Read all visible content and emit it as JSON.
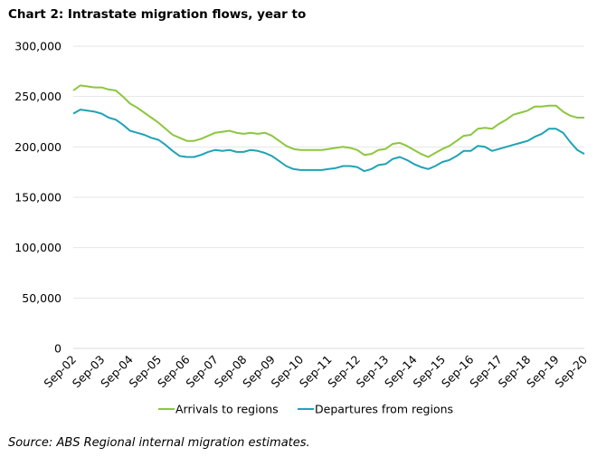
{
  "chart_data": {
    "type": "line",
    "title": "Chart 2: Intrastate migration flows, year to",
    "source": "Source: ABS Regional internal migration estimates.",
    "xlabel": "",
    "ylabel": "",
    "ylim": [
      0,
      300000
    ],
    "yticks": [
      0,
      50000,
      100000,
      150000,
      200000,
      250000,
      300000
    ],
    "ytick_labels": [
      "0",
      "50,000",
      "100,000",
      "150,000",
      "200,000",
      "250,000",
      "300,000"
    ],
    "xtick_labels": [
      "Sep-02",
      "Sep-03",
      "Sep-04",
      "Sep-05",
      "Sep-06",
      "Sep-07",
      "Sep-08",
      "Sep-09",
      "Sep-10",
      "Sep-11",
      "Sep-12",
      "Sep-13",
      "Sep-14",
      "Sep-15",
      "Sep-16",
      "Sep-17",
      "Sep-18",
      "Sep-19",
      "Sep-20"
    ],
    "x_frequency": "quarterly, Sep-02 to Sep-20",
    "grid": "horizontal",
    "legend": "bottom",
    "series": [
      {
        "name": "Arrivals to regions",
        "color": "#8dc63f",
        "values": [
          256000,
          261000,
          260000,
          259000,
          259000,
          257000,
          256000,
          250000,
          243000,
          239000,
          234000,
          229000,
          224000,
          218000,
          212000,
          209000,
          206000,
          206000,
          208000,
          211000,
          214000,
          215000,
          216000,
          214000,
          213000,
          214000,
          213000,
          214000,
          211000,
          206000,
          201000,
          198000,
          197000,
          197000,
          197000,
          197000,
          198000,
          199000,
          200000,
          199000,
          197000,
          192000,
          193000,
          197000,
          198000,
          203000,
          204000,
          201000,
          197000,
          193000,
          190000,
          194000,
          198000,
          201000,
          206000,
          211000,
          212000,
          218000,
          219000,
          218000,
          223000,
          227000,
          232000,
          234000,
          236000,
          240000,
          240000,
          241000,
          241000,
          235000,
          231000,
          229000,
          229000
        ]
      },
      {
        "name": "Departures from regions",
        "color": "#1fa3b5",
        "values": [
          233000,
          237000,
          236000,
          235000,
          233000,
          229000,
          227000,
          222000,
          216000,
          214000,
          212000,
          209000,
          207000,
          202000,
          196000,
          191000,
          190000,
          190000,
          192000,
          195000,
          197000,
          196000,
          197000,
          195000,
          195000,
          197000,
          196000,
          194000,
          191000,
          186000,
          181000,
          178000,
          177000,
          177000,
          177000,
          177000,
          178000,
          179000,
          181000,
          181000,
          180000,
          176000,
          178000,
          182000,
          183000,
          188000,
          190000,
          187000,
          183000,
          180000,
          178000,
          181000,
          185000,
          187000,
          191000,
          196000,
          196000,
          201000,
          200000,
          196000,
          198000,
          200000,
          202000,
          204000,
          206000,
          210000,
          213000,
          218000,
          218000,
          214000,
          205000,
          197000,
          193000
        ]
      }
    ]
  }
}
